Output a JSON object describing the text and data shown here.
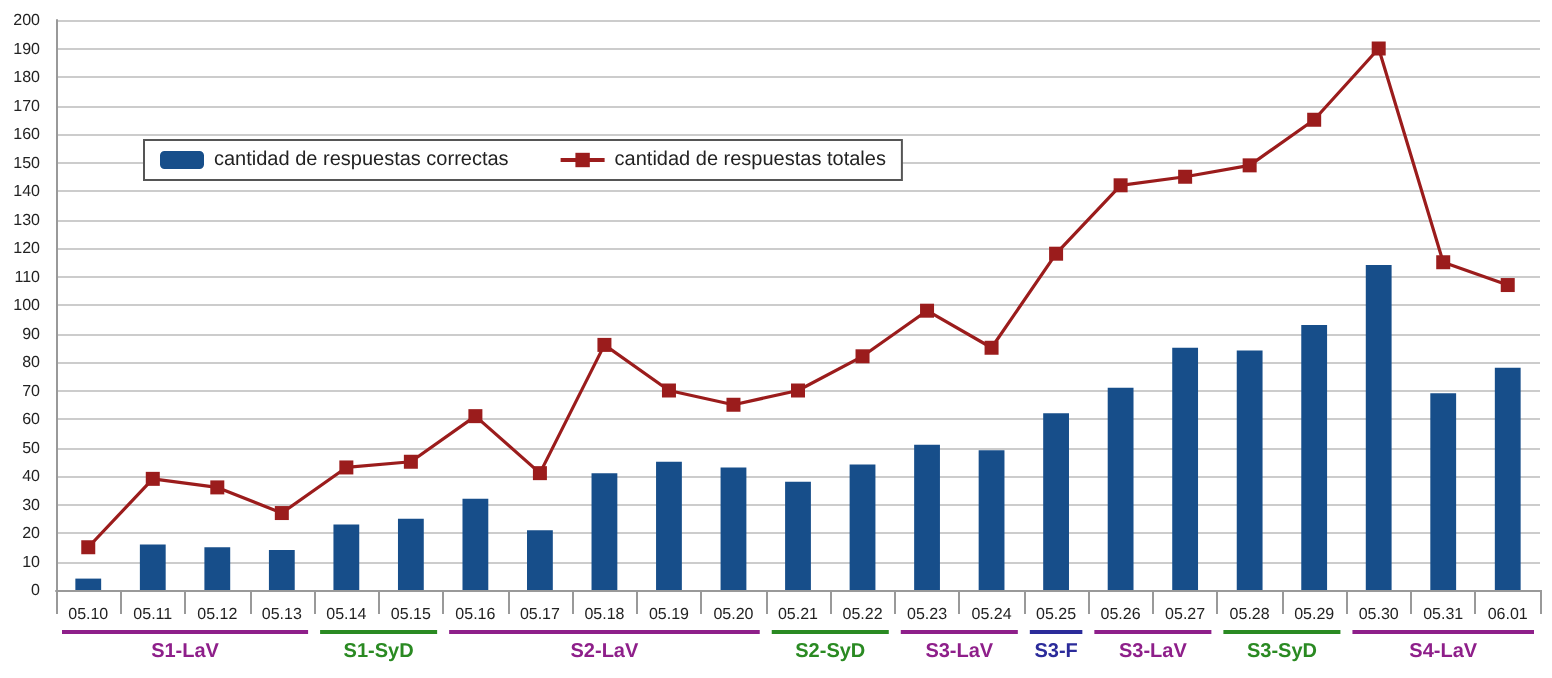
{
  "chart_data": {
    "type": "bar",
    "categories": [
      "05.10",
      "05.11",
      "05.12",
      "05.13",
      "05.14",
      "05.15",
      "05.16",
      "05.17",
      "05.18",
      "05.19",
      "05.20",
      "05.21",
      "05.22",
      "05.23",
      "05.24",
      "05.25",
      "05.26",
      "05.27",
      "05.28",
      "05.29",
      "05.30",
      "05.31",
      "06.01"
    ],
    "series": [
      {
        "name": "cantidad de respuestas correctas",
        "color": "#174e8a",
        "values": [
          4,
          16,
          15,
          14,
          23,
          25,
          32,
          21,
          41,
          45,
          43,
          38,
          44,
          51,
          49,
          62,
          71,
          85,
          84,
          93,
          114,
          69,
          78
        ]
      },
      {
        "name": "cantidad de respuestas totales",
        "type": "line",
        "color": "#9b1c1c",
        "marker": "square",
        "values": [
          15,
          39,
          36,
          27,
          43,
          45,
          61,
          41,
          86,
          70,
          65,
          70,
          82,
          98,
          85,
          118,
          142,
          145,
          149,
          165,
          190,
          115,
          107
        ]
      }
    ],
    "ylim": [
      0,
      200
    ],
    "yticks": [
      0,
      10,
      20,
      30,
      40,
      50,
      60,
      70,
      80,
      90,
      100,
      110,
      120,
      130,
      140,
      150,
      160,
      170,
      180,
      190,
      200
    ],
    "grid": "y",
    "legend": "top left",
    "annotations": [
      "S1-LaV",
      "S1-SyD",
      "S2-LaV",
      "S2-SyD",
      "S3-LaV",
      "S3-F",
      "S3-LaV",
      "S3-SyD",
      "S4-LaV"
    ]
  }
}
